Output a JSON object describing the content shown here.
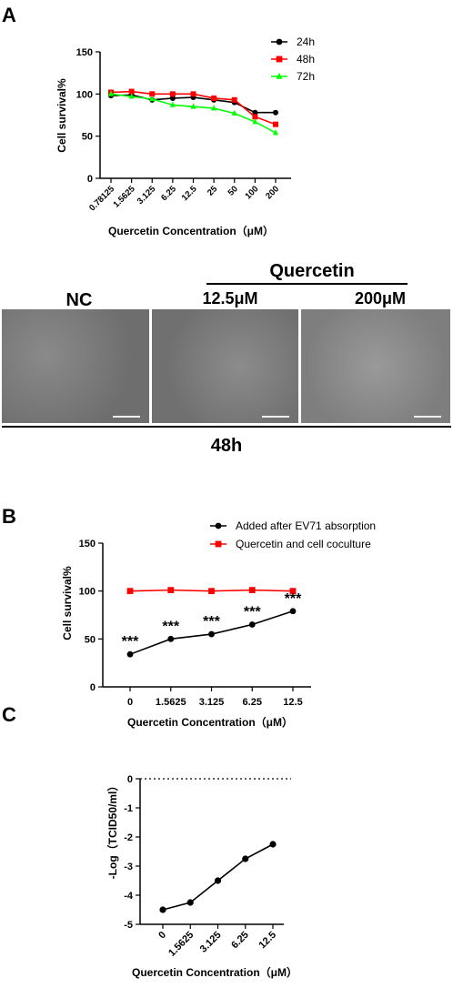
{
  "panel_labels": {
    "a": "A",
    "b": "B",
    "c": "C"
  },
  "micrograph": {
    "header": "Quercetin",
    "labels": [
      "NC",
      "12.5μM",
      "200μM"
    ],
    "time_label": "48h",
    "image_descriptions": [
      "micrograph-nc",
      "micrograph-12.5",
      "micrograph-200"
    ]
  },
  "chart_data": [
    {
      "type": "line",
      "panel": "A",
      "categories": [
        "0.78125",
        "1.5625",
        "3.125",
        "6.25",
        "12.5",
        "25",
        "50",
        "100",
        "200"
      ],
      "series": [
        {
          "name": "24h",
          "color": "#000000",
          "marker": "circle",
          "values": [
            98,
            99,
            93,
            95,
            96,
            93,
            90,
            78,
            78
          ]
        },
        {
          "name": "48h",
          "color": "#ff0000",
          "marker": "square",
          "values": [
            102,
            103,
            100,
            100,
            100,
            95,
            93,
            73,
            64
          ]
        },
        {
          "name": "72h",
          "color": "#00ff00",
          "marker": "triangle",
          "values": [
            100,
            97,
            94,
            87,
            85,
            83,
            77,
            67,
            54
          ]
        }
      ],
      "xlabel": "Quercetin Concentration（μM）",
      "ylabel": "Cell survival%",
      "ylim": [
        0,
        150
      ],
      "yticks": [
        "0",
        "50",
        "100",
        "150"
      ],
      "legend": "top-right"
    },
    {
      "type": "line",
      "panel": "B",
      "categories": [
        "0",
        "1.5625",
        "3.125",
        "6.25",
        "12.5"
      ],
      "series": [
        {
          "name": "Added after EV71 absorption",
          "color": "#000000",
          "marker": "circle",
          "values": [
            34,
            50,
            55,
            65,
            79
          ]
        },
        {
          "name": "Quercetin and cell coculture",
          "color": "#ff0000",
          "marker": "square",
          "values": [
            100,
            101,
            100,
            101,
            100
          ]
        }
      ],
      "annotations": [
        "***",
        "***",
        "***",
        "***",
        "***"
      ],
      "xlabel": "Quercetin Concentration（μM）",
      "ylabel": "Cell survival%",
      "ylim": [
        0,
        150
      ],
      "yticks": [
        "0",
        "50",
        "100",
        "150"
      ],
      "legend": "top-right"
    },
    {
      "type": "line",
      "panel": "C",
      "categories": [
        "0",
        "1.5625",
        "3.125",
        "6.25",
        "12.5"
      ],
      "series": [
        {
          "color": "#000000",
          "marker": "circle",
          "values": [
            -4.5,
            -4.25,
            -3.5,
            -2.75,
            -2.25
          ]
        }
      ],
      "xlabel": "Quercetin Concentration（μM）",
      "ylabel": "-Log（TCID50/ml）",
      "ylim": [
        -5,
        0
      ],
      "yticks": [
        "-5",
        "-4",
        "-3",
        "-2",
        "-1",
        "0"
      ],
      "reference_line": 0
    }
  ]
}
